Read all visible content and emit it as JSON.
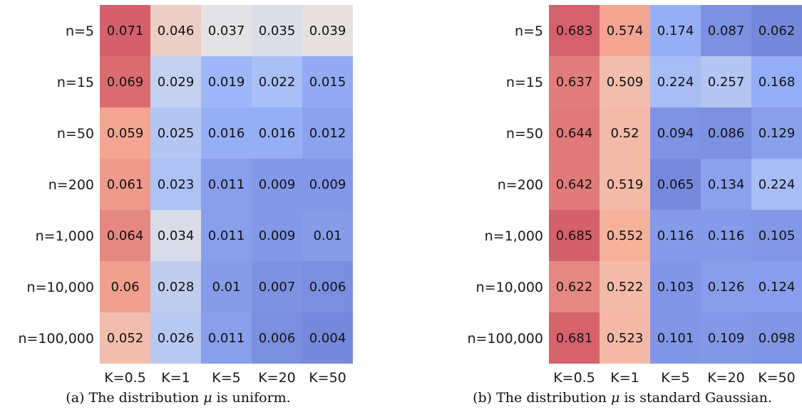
{
  "chart_data": [
    {
      "type": "heatmap",
      "rows": [
        "n=5",
        "n=15",
        "n=50",
        "n=200",
        "n=1,000",
        "n=10,000",
        "n=100,000"
      ],
      "columns": [
        "K=0.5",
        "K=1",
        "K=5",
        "K=20",
        "K=50"
      ],
      "values": [
        [
          "0.071",
          "0.046",
          "0.037",
          "0.035",
          "0.039"
        ],
        [
          "0.069",
          "0.029",
          "0.019",
          "0.022",
          "0.015"
        ],
        [
          "0.059",
          "0.025",
          "0.016",
          "0.016",
          "0.012"
        ],
        [
          "0.061",
          "0.023",
          "0.011",
          "0.009",
          "0.009"
        ],
        [
          "0.064",
          "0.034",
          "0.011",
          "0.009",
          "0.01"
        ],
        [
          "0.06",
          "0.028",
          "0.01",
          "0.007",
          "0.006"
        ],
        [
          "0.052",
          "0.026",
          "0.011",
          "0.006",
          "0.004"
        ]
      ],
      "colormap": "coolwarm",
      "color_range": [
        0.004,
        0.071
      ],
      "caption_prefix": "(a) The distribution ",
      "caption_symbol": "μ",
      "caption_suffix": " is uniform."
    },
    {
      "type": "heatmap",
      "rows": [
        "n=5",
        "n=15",
        "n=50",
        "n=200",
        "n=1,000",
        "n=10,000",
        "n=100,000"
      ],
      "columns": [
        "K=0.5",
        "K=1",
        "K=5",
        "K=20",
        "K=50"
      ],
      "values": [
        [
          "0.683",
          "0.574",
          "0.174",
          "0.087",
          "0.062"
        ],
        [
          "0.637",
          "0.509",
          "0.224",
          "0.257",
          "0.168"
        ],
        [
          "0.644",
          "0.52",
          "0.094",
          "0.086",
          "0.129"
        ],
        [
          "0.642",
          "0.519",
          "0.065",
          "0.134",
          "0.224"
        ],
        [
          "0.685",
          "0.552",
          "0.116",
          "0.116",
          "0.105"
        ],
        [
          "0.622",
          "0.522",
          "0.103",
          "0.126",
          "0.124"
        ],
        [
          "0.681",
          "0.523",
          "0.101",
          "0.109",
          "0.098"
        ]
      ],
      "colormap": "coolwarm",
      "color_range": [
        0.062,
        0.685
      ],
      "caption_prefix": "(b) The distribution ",
      "caption_symbol": "μ",
      "caption_suffix": " is standard Gaussian."
    }
  ]
}
